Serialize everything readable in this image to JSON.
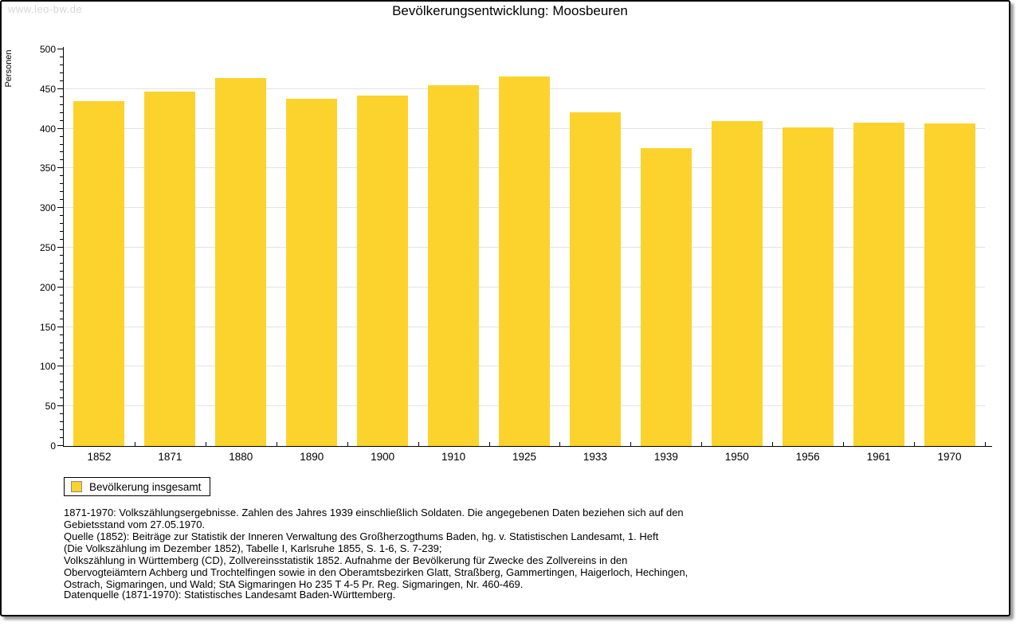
{
  "watermark": "www.leo-bw.de",
  "title": "Bevölkerungsentwicklung: Moosbeuren",
  "chart_data": {
    "type": "bar",
    "title": "Bevölkerungsentwicklung: Moosbeuren",
    "xlabel": "",
    "ylabel": "Personen",
    "categories": [
      "1852",
      "1871",
      "1880",
      "1890",
      "1900",
      "1910",
      "1925",
      "1933",
      "1939",
      "1950",
      "1956",
      "1961",
      "1970"
    ],
    "series": [
      {
        "name": "Bevölkerung insgesamt",
        "values": [
          435,
          447,
          464,
          438,
          442,
          455,
          466,
          421,
          376,
          410,
          402,
          408,
          407
        ]
      }
    ],
    "ylim": [
      0,
      500
    ],
    "ytick_interval": 50,
    "ytick_minor_interval": 10,
    "grid": true,
    "bar_color": "#fcd32d",
    "legend_position": "bottom-left"
  },
  "legend": {
    "label": "Bevölkerung insgesamt"
  },
  "footer": {
    "lines": [
      "1871-1970: Volkszählungsergebnisse. Zahlen des Jahres 1939 einschließlich Soldaten. Die angegebenen Daten beziehen sich auf den",
      "Gebietsstand vom 27.05.1970.",
      "Quelle (1852): Beiträge zur Statistik der Inneren Verwaltung des Großherzogthums Baden, hg. v. Statistischen Landesamt, 1. Heft",
      "(Die Volkszählung im Dezember 1852), Tabelle I, Karlsruhe 1855, S. 1-6, S. 7-239;",
      "Volkszählung in Württemberg (CD), Zollvereinsstatistik 1852. Aufnahme der Bevölkerung für Zwecke des Zollvereins in den",
      "Obervogteiämtern Achberg und Trochtelfingen sowie in den Oberamtsbezirken Glatt, Straßberg, Gammertingen, Haigerloch, Hechingen,",
      "Ostrach, Sigmaringen, und Wald; StA Sigmaringen Ho 235 T 4-5 Pr. Reg. Sigmaringen, Nr. 460-469."
    ],
    "datasource": "Datenquelle (1871-1970): Statistisches Landesamt Baden-Württemberg."
  }
}
